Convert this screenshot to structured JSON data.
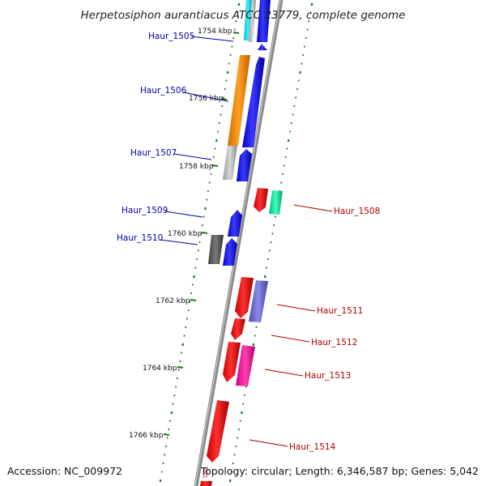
{
  "title": "Herpetosiphon aurantiacus ATCC 23779, complete genome",
  "footer": {
    "accession": "Accession: NC_009972",
    "summary": "Topology: circular; Length: 6,346,587 bp; Genes: 5,042"
  },
  "colors": {
    "backbone": "#808080",
    "ticks_outer": "#1a7a1a",
    "label_left": "#0000a8",
    "label_right": "#b00000"
  },
  "kbp_markers": [
    "1754 kbp",
    "1756 kbp",
    "1758 kbp",
    "1760 kbp",
    "1762 kbp",
    "1764 kbp",
    "1766 kbp"
  ],
  "gene_labels": {
    "left": [
      "Haur_1505",
      "Haur_1506",
      "Haur_1507",
      "Haur_1509",
      "Haur_1510"
    ],
    "right": [
      "Haur_1508",
      "Haur_1511",
      "Haur_1512",
      "Haur_1513",
      "Haur_1514"
    ]
  }
}
